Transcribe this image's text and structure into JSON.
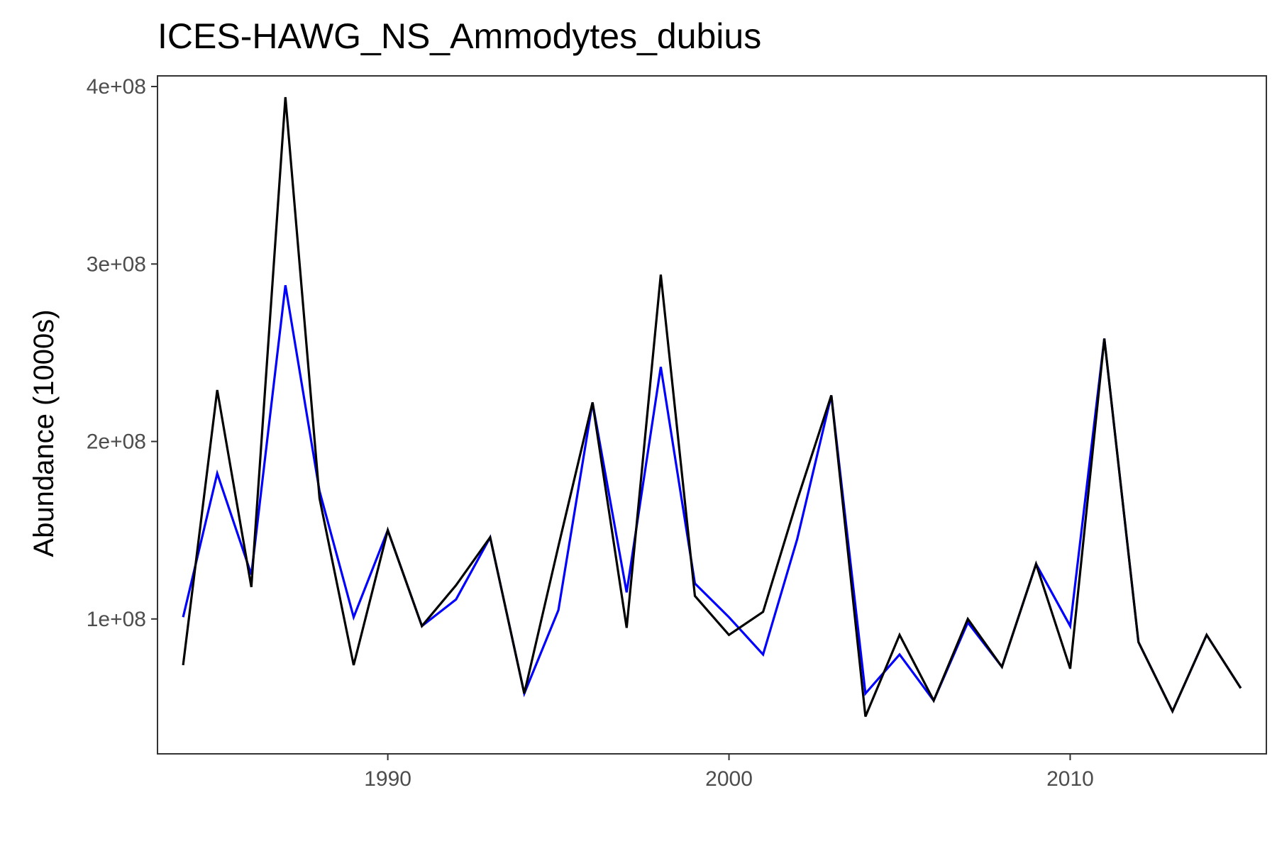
{
  "chart_data": {
    "type": "line",
    "title": "ICES-HAWG_NS_Ammodytes_dubius",
    "xlabel": "",
    "ylabel": "Abundance (1000s)",
    "xlim": [
      1983.25,
      2015.75
    ],
    "ylim": [
      24000000,
      406000000
    ],
    "x_ticks": [
      1990,
      2000,
      2010
    ],
    "x_tick_labels": [
      "1990",
      "2000",
      "2010"
    ],
    "y_ticks": [
      100000000,
      200000000,
      300000000,
      400000000
    ],
    "y_tick_labels": [
      "1e+08",
      "2e+08",
      "3e+08",
      "4e+08"
    ],
    "grid": false,
    "legend": "none",
    "x": [
      1984,
      1985,
      1986,
      1987,
      1988,
      1989,
      1990,
      1991,
      1992,
      1993,
      1994,
      1995,
      1996,
      1997,
      1998,
      1999,
      2000,
      2001,
      2002,
      2003,
      2004,
      2005,
      2006,
      2007,
      2008,
      2009,
      2010,
      2011,
      2012,
      2013,
      2014,
      2015
    ],
    "series": [
      {
        "color": "#0000ff",
        "values": [
          101000000,
          182000000,
          125000000,
          288000000,
          172000000,
          101000000,
          150000000,
          96000000,
          111000000,
          146000000,
          58000000,
          105000000,
          222000000,
          115000000,
          242000000,
          120000000,
          101000000,
          80000000,
          145000000,
          226000000,
          58000000,
          80000000,
          54000000,
          98000000,
          73000000,
          131000000,
          96000000,
          258000000,
          87000000,
          48000000,
          91000000,
          61000000
        ]
      },
      {
        "color": "#000000",
        "values": [
          74000000,
          229000000,
          118000000,
          394000000,
          168000000,
          74000000,
          150000000,
          96000000,
          119000000,
          146000000,
          58000000,
          141000000,
          222000000,
          95000000,
          294000000,
          113000000,
          91000000,
          104000000,
          167000000,
          226000000,
          45000000,
          91000000,
          54000000,
          100000000,
          73000000,
          131000000,
          72000000,
          258000000,
          87000000,
          48000000,
          91000000,
          61000000
        ]
      }
    ]
  }
}
